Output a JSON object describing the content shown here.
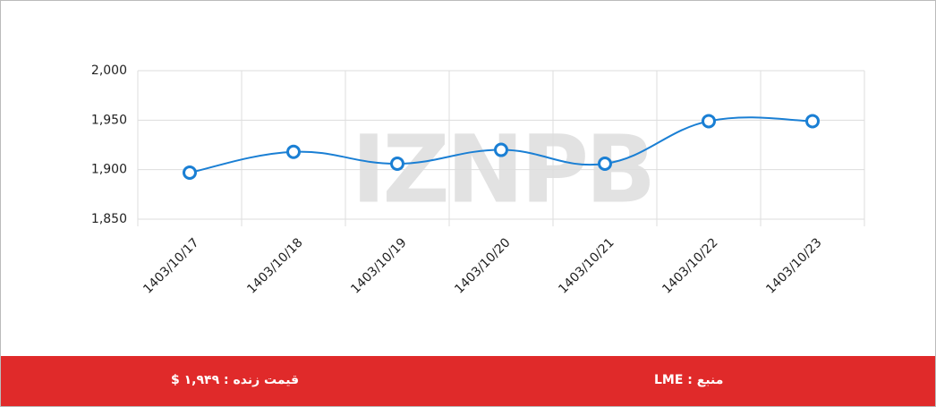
{
  "chart_data": {
    "type": "line",
    "categories": [
      "1403/10/17",
      "1403/10/18",
      "1403/10/19",
      "1403/10/20",
      "1403/10/21",
      "1403/10/22",
      "1403/10/23"
    ],
    "series": [
      {
        "color": "#1a7fd4",
        "values": [
          1897,
          1918,
          1906,
          1920,
          1906,
          1949,
          1949
        ]
      }
    ],
    "ylim": [
      1850,
      2000
    ],
    "yticks": [
      {
        "value": 1850,
        "label": "1,850"
      },
      {
        "value": 1900,
        "label": "1,900"
      },
      {
        "value": 1950,
        "label": "1,950"
      },
      {
        "value": 2000,
        "label": "2,000"
      }
    ],
    "grid": true,
    "watermark": "IZNPB"
  },
  "footer": {
    "live_price": "قیمت زنده : ۱,۹۴۹ $",
    "source": "منبع : LME"
  }
}
